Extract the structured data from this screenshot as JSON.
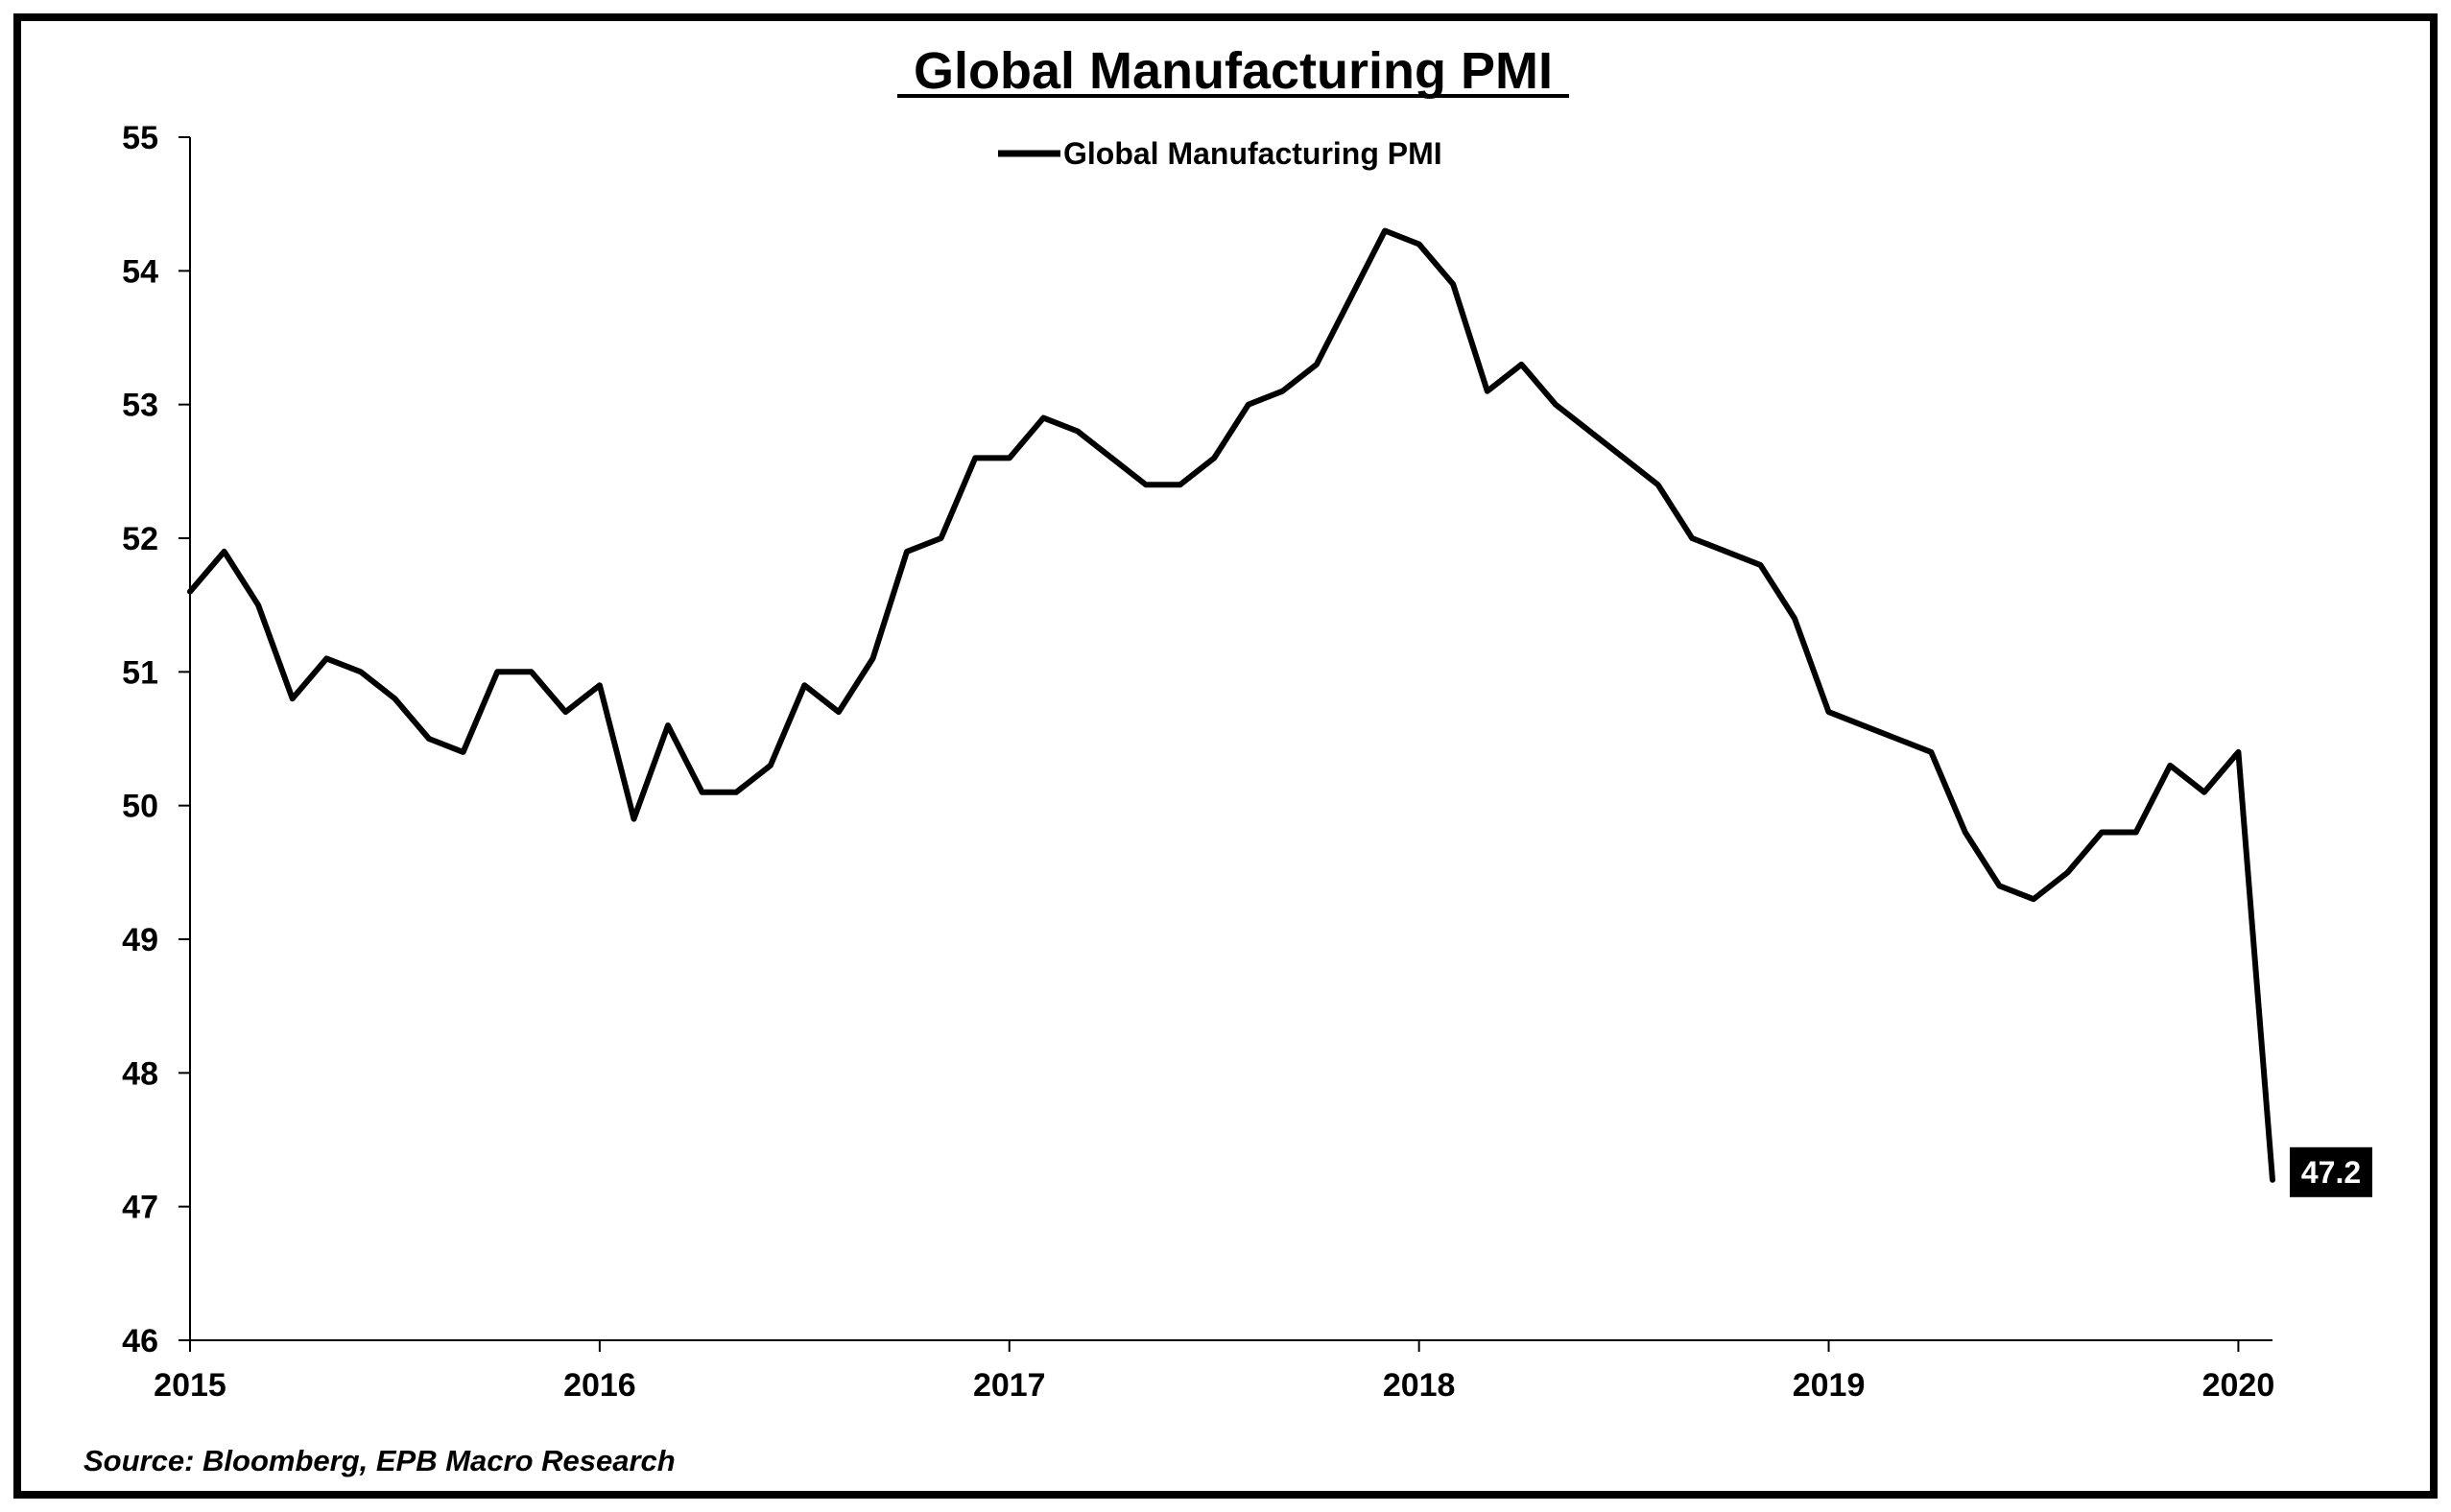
{
  "chart_data": {
    "type": "line",
    "title": "Global Manufacturing PMI",
    "xlabel": "",
    "ylabel": "",
    "ylim": [
      46,
      55
    ],
    "yticks": [
      "46",
      "47",
      "48",
      "49",
      "50",
      "51",
      "52",
      "53",
      "54",
      "55"
    ],
    "xticks": [
      "2015",
      "2016",
      "2017",
      "2018",
      "2019",
      "2020"
    ],
    "x_start": "2015-01",
    "x_end": "2020-02",
    "legend": {
      "position": "top-center"
    },
    "grid": false,
    "series": [
      {
        "name": "Global Manufacturing PMI",
        "color": "#000000",
        "x": [
          "2015-01",
          "2015-02",
          "2015-03",
          "2015-04",
          "2015-05",
          "2015-06",
          "2015-07",
          "2015-08",
          "2015-09",
          "2015-10",
          "2015-11",
          "2015-12",
          "2016-01",
          "2016-02",
          "2016-03",
          "2016-04",
          "2016-05",
          "2016-06",
          "2016-07",
          "2016-08",
          "2016-09",
          "2016-10",
          "2016-11",
          "2016-12",
          "2017-01",
          "2017-02",
          "2017-03",
          "2017-04",
          "2017-05",
          "2017-06",
          "2017-07",
          "2017-08",
          "2017-09",
          "2017-10",
          "2017-11",
          "2017-12",
          "2018-01",
          "2018-02",
          "2018-03",
          "2018-04",
          "2018-05",
          "2018-06",
          "2018-07",
          "2018-08",
          "2018-09",
          "2018-10",
          "2018-11",
          "2018-12",
          "2019-01",
          "2019-02",
          "2019-03",
          "2019-04",
          "2019-05",
          "2019-06",
          "2019-07",
          "2019-08",
          "2019-09",
          "2019-10",
          "2019-11",
          "2019-12",
          "2020-01",
          "2020-02"
        ],
        "values": [
          51.6,
          51.9,
          51.5,
          50.8,
          51.1,
          51.0,
          50.8,
          50.5,
          50.4,
          51.0,
          51.0,
          50.7,
          50.9,
          49.9,
          50.6,
          50.1,
          50.1,
          50.3,
          50.9,
          50.7,
          51.1,
          51.9,
          52.0,
          52.6,
          52.6,
          52.9,
          52.8,
          52.6,
          52.4,
          52.4,
          52.6,
          53.0,
          53.1,
          53.3,
          53.8,
          54.3,
          54.2,
          53.9,
          53.1,
          53.3,
          53.0,
          52.8,
          52.6,
          52.4,
          52.0,
          51.9,
          51.8,
          51.4,
          50.7,
          50.6,
          50.5,
          50.4,
          49.8,
          49.4,
          49.3,
          49.5,
          49.8,
          49.8,
          50.3,
          50.1,
          50.4,
          47.2
        ]
      }
    ],
    "annotations": [
      {
        "text": "47.2",
        "x": "2020-02",
        "y": 47.2
      }
    ],
    "source": "Source: Bloomberg, EPB Macro Research"
  }
}
